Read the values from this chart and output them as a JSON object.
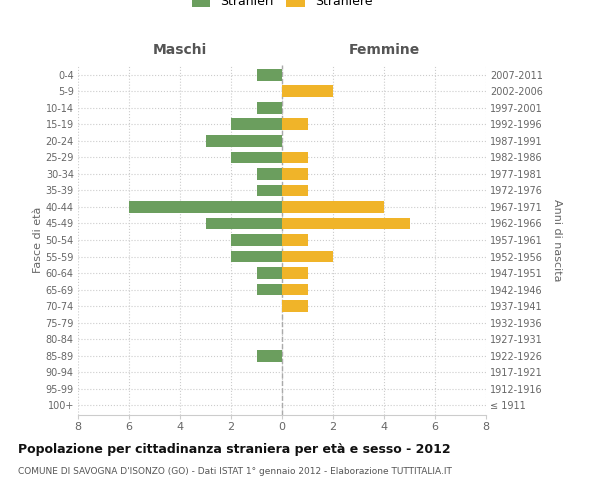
{
  "age_groups": [
    "100+",
    "95-99",
    "90-94",
    "85-89",
    "80-84",
    "75-79",
    "70-74",
    "65-69",
    "60-64",
    "55-59",
    "50-54",
    "45-49",
    "40-44",
    "35-39",
    "30-34",
    "25-29",
    "20-24",
    "15-19",
    "10-14",
    "5-9",
    "0-4"
  ],
  "birth_years": [
    "≤ 1911",
    "1912-1916",
    "1917-1921",
    "1922-1926",
    "1927-1931",
    "1932-1936",
    "1937-1941",
    "1942-1946",
    "1947-1951",
    "1952-1956",
    "1957-1961",
    "1962-1966",
    "1967-1971",
    "1972-1976",
    "1977-1981",
    "1982-1986",
    "1987-1991",
    "1992-1996",
    "1997-2001",
    "2002-2006",
    "2007-2011"
  ],
  "males": [
    0,
    0,
    0,
    1,
    0,
    0,
    0,
    1,
    1,
    2,
    2,
    3,
    6,
    1,
    1,
    2,
    3,
    2,
    1,
    0,
    1
  ],
  "females": [
    0,
    0,
    0,
    0,
    0,
    0,
    1,
    1,
    1,
    2,
    1,
    5,
    4,
    1,
    1,
    1,
    0,
    1,
    0,
    2,
    0
  ],
  "male_color": "#6b9e5e",
  "female_color": "#f0b429",
  "xlim": 8,
  "title": "Popolazione per cittadinanza straniera per età e sesso - 2012",
  "subtitle": "COMUNE DI SAVOGNA D'ISONZO (GO) - Dati ISTAT 1° gennaio 2012 - Elaborazione TUTTITALIA.IT",
  "ylabel_left": "Fasce di età",
  "ylabel_right": "Anni di nascita",
  "header_left": "Maschi",
  "header_right": "Femmine",
  "legend_male": "Stranieri",
  "legend_female": "Straniere",
  "bg_color": "#ffffff",
  "grid_color": "#cccccc",
  "bar_height": 0.72
}
